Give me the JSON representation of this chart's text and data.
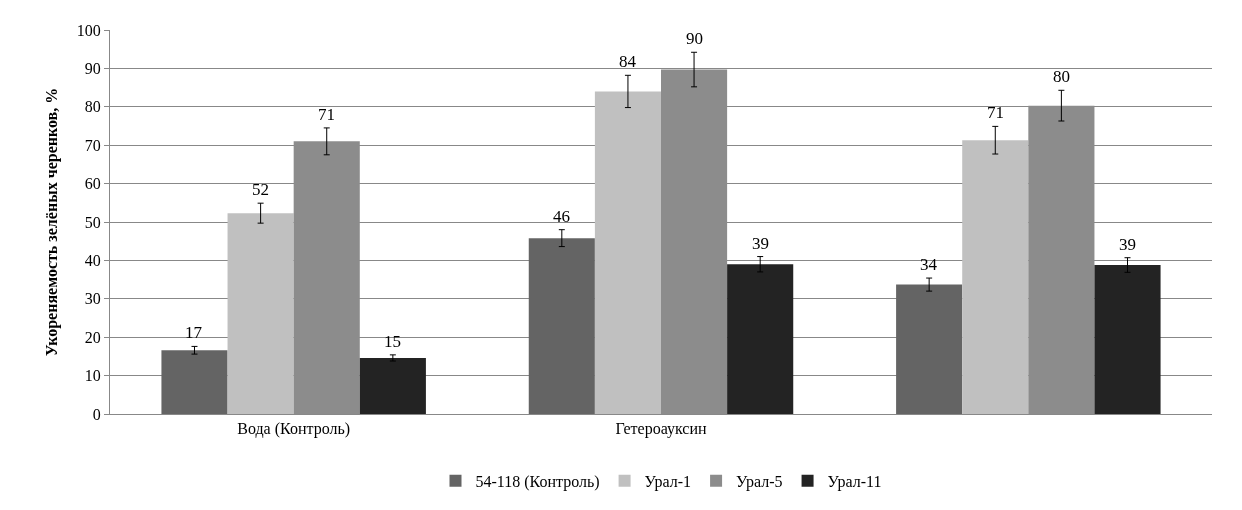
{
  "chart_data": {
    "type": "bar",
    "ylabel": "Укореняемость зелёных черенков, %",
    "categories": [
      "Вода (Контроль)",
      "Гетероауксин",
      null
    ],
    "series": [
      {
        "name": "54-118 (Контроль)",
        "color": "#646464",
        "values": [
          16.6,
          45.8,
          33.7
        ],
        "errors": [
          1,
          2.2,
          1.7
        ],
        "value_labels": [
          "17",
          "46",
          "34"
        ]
      },
      {
        "name": "Урал-1",
        "color": "#c0c0c0",
        "values": [
          52.3,
          84,
          71.3
        ],
        "errors": [
          2.6,
          4.2,
          3.6
        ],
        "value_labels": [
          "52",
          "84",
          "71"
        ]
      },
      {
        "name": "Урал-5",
        "color": "#8c8c8c",
        "values": [
          71,
          89.7,
          80.3
        ],
        "errors": [
          3.5,
          4.5,
          4
        ],
        "value_labels": [
          "71",
          "90",
          "80"
        ]
      },
      {
        "name": "Урал-11",
        "color": "#232323",
        "values": [
          14.6,
          39,
          38.8
        ],
        "errors": [
          0.8,
          2,
          1.9
        ],
        "value_labels": [
          "15",
          "39",
          "39"
        ]
      }
    ],
    "ylim": [
      0,
      100
    ],
    "yticks": [
      0,
      10,
      20,
      30,
      40,
      50,
      60,
      70,
      80,
      90,
      100
    ],
    "grid": "y",
    "legend": "bottom"
  }
}
